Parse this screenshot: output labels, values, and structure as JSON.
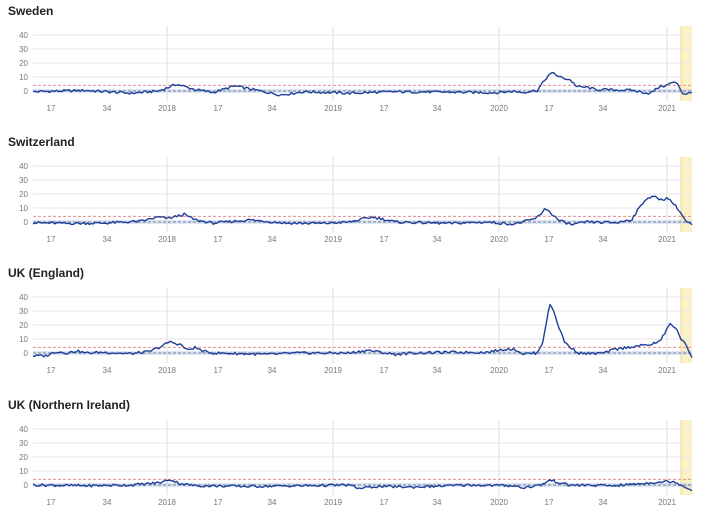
{
  "colors": {
    "line": "#1f3f99",
    "band": "#c9d6ee",
    "baseline": "#6f7f8f",
    "threshold": "#e48f8f",
    "grid": "#e6e6e6",
    "vline": "#dddddd",
    "highlight": "#fbf1c6",
    "highlight_border": "#efd57a"
  },
  "chart_data": [
    {
      "type": "line",
      "title": "Sweden",
      "ylim": [
        -5,
        45
      ],
      "yticks": [
        0,
        10,
        20,
        30,
        40
      ],
      "xtick_labels": [
        "17",
        "34",
        "2018",
        "17",
        "34",
        "2019",
        "17",
        "34",
        "2020",
        "17",
        "34",
        "2021"
      ],
      "week_range": [
        1,
        363
      ],
      "baseline": 0,
      "threshold": 4,
      "highlight_weeks": [
        357,
        363
      ],
      "series": [
        {
          "keypoints": [
            [
              1,
              -0.5
            ],
            [
              30,
              0.4
            ],
            [
              55,
              -1.6
            ],
            [
              70,
              0
            ],
            [
              80,
              4.8
            ],
            [
              90,
              1
            ],
            [
              100,
              -1
            ],
            [
              112,
              3.6
            ],
            [
              122,
              1
            ],
            [
              137,
              -2.8
            ],
            [
              150,
              -0.5
            ],
            [
              175,
              -1.6
            ],
            [
              200,
              -0.5
            ],
            [
              230,
              -0.8
            ],
            [
              255,
              -1.2
            ],
            [
              265,
              -0.2
            ],
            [
              270,
              -1
            ],
            [
              278,
              0.5
            ],
            [
              284,
              11
            ],
            [
              287,
              13
            ],
            [
              290,
              10
            ],
            [
              296,
              8
            ],
            [
              300,
              3
            ],
            [
              306,
              2.5
            ],
            [
              310,
              1
            ],
            [
              330,
              0.5
            ],
            [
              340,
              -1.8
            ],
            [
              345,
              3
            ],
            [
              349,
              4
            ],
            [
              352,
              6
            ],
            [
              355,
              5.5
            ],
            [
              358,
              -2
            ],
            [
              363,
              -1.5
            ]
          ]
        }
      ]
    },
    {
      "type": "line",
      "title": "Switzerland",
      "ylim": [
        -5,
        45
      ],
      "yticks": [
        0,
        10,
        20,
        30,
        40
      ],
      "xtick_labels": [
        "17",
        "34",
        "2018",
        "17",
        "34",
        "2019",
        "17",
        "34",
        "2020",
        "17",
        "34",
        "2021"
      ],
      "week_range": [
        1,
        363
      ],
      "baseline": 0,
      "threshold": 4,
      "highlight_weeks": [
        357,
        363
      ],
      "series": [
        {
          "keypoints": [
            [
              1,
              -0.5
            ],
            [
              20,
              -1
            ],
            [
              40,
              -0.8
            ],
            [
              60,
              0.5
            ],
            [
              70,
              3.5
            ],
            [
              75,
              2.5
            ],
            [
              84,
              5.5
            ],
            [
              90,
              1.5
            ],
            [
              100,
              -0.8
            ],
            [
              120,
              1.5
            ],
            [
              140,
              -0.8
            ],
            [
              160,
              -1
            ],
            [
              175,
              0
            ],
            [
              187,
              3.5
            ],
            [
              192,
              2.5
            ],
            [
              200,
              0
            ],
            [
              230,
              -1
            ],
            [
              250,
              0
            ],
            [
              265,
              -1.5
            ],
            [
              270,
              0
            ],
            [
              276,
              2
            ],
            [
              280,
              5
            ],
            [
              282,
              10
            ],
            [
              285,
              7
            ],
            [
              290,
              1
            ],
            [
              297,
              -2
            ],
            [
              305,
              0
            ],
            [
              322,
              -0.5
            ],
            [
              330,
              2
            ],
            [
              334,
              10
            ],
            [
              338,
              17
            ],
            [
              342,
              18
            ],
            [
              346,
              16
            ],
            [
              350,
              17
            ],
            [
              355,
              10
            ],
            [
              360,
              0
            ],
            [
              363,
              -2
            ]
          ]
        }
      ]
    },
    {
      "type": "line",
      "title": "UK (England)",
      "ylim": [
        -5,
        45
      ],
      "yticks": [
        0,
        10,
        20,
        30,
        40
      ],
      "xtick_labels": [
        "17",
        "34",
        "2018",
        "17",
        "34",
        "2019",
        "17",
        "34",
        "2020",
        "17",
        "34",
        "2021"
      ],
      "week_range": [
        1,
        363
      ],
      "baseline": 0,
      "threshold": 4,
      "highlight_weeks": [
        357,
        363
      ],
      "series": [
        {
          "keypoints": [
            [
              1,
              -2
            ],
            [
              8,
              -2
            ],
            [
              14,
              1
            ],
            [
              20,
              0
            ],
            [
              25,
              1.5
            ],
            [
              30,
              0
            ],
            [
              40,
              0.5
            ],
            [
              55,
              -0.5
            ],
            [
              65,
              1
            ],
            [
              72,
              5
            ],
            [
              76,
              8
            ],
            [
              82,
              6
            ],
            [
              86,
              2
            ],
            [
              90,
              4
            ],
            [
              95,
              1
            ],
            [
              100,
              0
            ],
            [
              115,
              -0.5
            ],
            [
              130,
              -1
            ],
            [
              145,
              0
            ],
            [
              175,
              0
            ],
            [
              185,
              2
            ],
            [
              192,
              0.5
            ],
            [
              200,
              -1
            ],
            [
              210,
              0
            ],
            [
              230,
              0.5
            ],
            [
              250,
              0.5
            ],
            [
              262,
              3
            ],
            [
              266,
              2.5
            ],
            [
              270,
              -0.5
            ],
            [
              278,
              0
            ],
            [
              281,
              8
            ],
            [
              283,
              22
            ],
            [
              285,
              35
            ],
            [
              287,
              30
            ],
            [
              290,
              18
            ],
            [
              293,
              8
            ],
            [
              297,
              3
            ],
            [
              301,
              0
            ],
            [
              308,
              -0.5
            ],
            [
              315,
              0
            ],
            [
              320,
              2.5
            ],
            [
              330,
              4.5
            ],
            [
              340,
              6
            ],
            [
              345,
              8
            ],
            [
              348,
              14
            ],
            [
              351,
              21
            ],
            [
              354,
              18
            ],
            [
              357,
              10
            ],
            [
              360,
              5
            ],
            [
              363,
              -3
            ]
          ]
        }
      ]
    },
    {
      "type": "line",
      "title": "UK (Northern Ireland)",
      "ylim": [
        -5,
        45
      ],
      "yticks": [
        0,
        10,
        20,
        30,
        40
      ],
      "xtick_labels": [
        "17",
        "34",
        "2018",
        "17",
        "34",
        "2019",
        "17",
        "34",
        "2020",
        "17",
        "34",
        "2021"
      ],
      "week_range": [
        1,
        363
      ],
      "baseline": 0,
      "threshold": 4,
      "highlight_weeks": [
        357,
        363
      ],
      "series": [
        {
          "keypoints": [
            [
              1,
              0
            ],
            [
              30,
              -0.5
            ],
            [
              55,
              0
            ],
            [
              65,
              1
            ],
            [
              72,
              2
            ],
            [
              76,
              4
            ],
            [
              82,
              1
            ],
            [
              90,
              -0.5
            ],
            [
              120,
              -1
            ],
            [
              150,
              -0.5
            ],
            [
              175,
              0
            ],
            [
              180,
              -2.5
            ],
            [
              190,
              -1
            ],
            [
              210,
              -1.5
            ],
            [
              240,
              0
            ],
            [
              265,
              -0.5
            ],
            [
              270,
              -2
            ],
            [
              280,
              0
            ],
            [
              285,
              3.5
            ],
            [
              288,
              2.5
            ],
            [
              295,
              0
            ],
            [
              320,
              -0.5
            ],
            [
              335,
              1
            ],
            [
              343,
              2
            ],
            [
              350,
              2.5
            ],
            [
              354,
              2
            ],
            [
              358,
              -0.5
            ],
            [
              363,
              -4
            ]
          ]
        }
      ]
    }
  ]
}
